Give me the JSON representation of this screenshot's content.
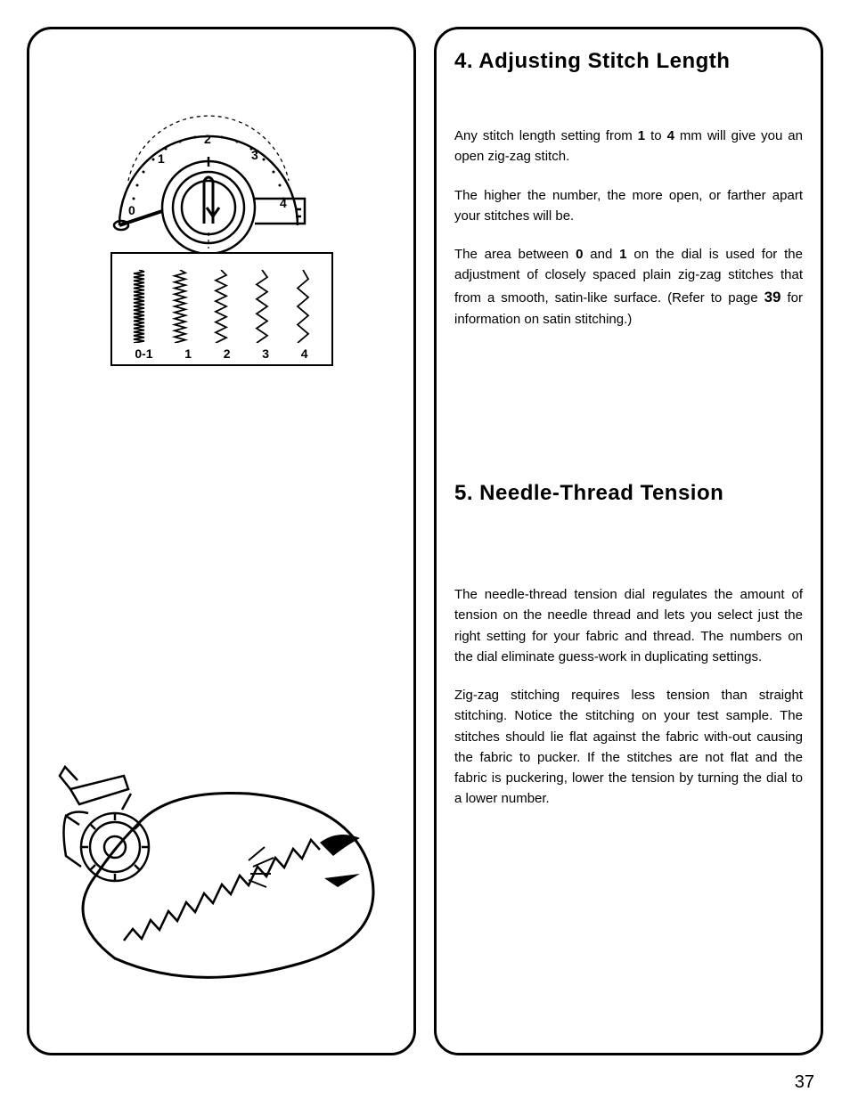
{
  "page_number": "37",
  "background_color": "#ffffff",
  "text_color": "#000000",
  "border_color": "#000000",
  "heading_fontsize": 24,
  "body_fontsize": 15,
  "section4": {
    "heading": "4. Adjusting Stitch Length",
    "p1_a": "Any stitch length setting from ",
    "p1_b": "1",
    "p1_c": " to ",
    "p1_d": "4",
    "p1_e": " mm will give you an open zig-zag stitch.",
    "p2": "The higher the number, the more open, or farther apart your stitches will be.",
    "p3_a": "The area between ",
    "p3_b": "0",
    "p3_c": " and ",
    "p3_d": "1",
    "p3_e": " on the dial is used for the adjustment of closely spaced plain zig-zag stitches that from a smooth, satin-like surface. (Refer to page ",
    "p3_f": "39",
    "p3_g": " for information on satin stitching.)"
  },
  "section5": {
    "heading": "5. Needle-Thread Tension",
    "p1": "The needle-thread tension dial regulates the amount of tension on the needle thread and lets you select just the right setting for your fabric and thread. The numbers on the dial eliminate guess-work in duplicating settings.",
    "p2": "Zig-zag stitching requires less tension than straight stitching. Notice the stitching on your test sample. The stitches should lie flat against the fabric with-out causing the fabric to pucker. If the stitches are not flat and the fabric is puckering, lower the tension by turning the dial to a lower number."
  },
  "dial": {
    "labels": [
      "0",
      "1",
      "2",
      "3",
      "4"
    ],
    "line_width": 2.5,
    "dash_width": 1.2
  },
  "stitch_samples": {
    "labels": [
      "0-1",
      "1",
      "2",
      "3",
      "4"
    ],
    "cycles": [
      20,
      12,
      7,
      5,
      4
    ],
    "amplitude": 6,
    "height": 82,
    "stroke": "#000000",
    "stroke_width": 1.8
  },
  "figure2": {
    "stroke": "#000000",
    "line_width": 2.5
  }
}
